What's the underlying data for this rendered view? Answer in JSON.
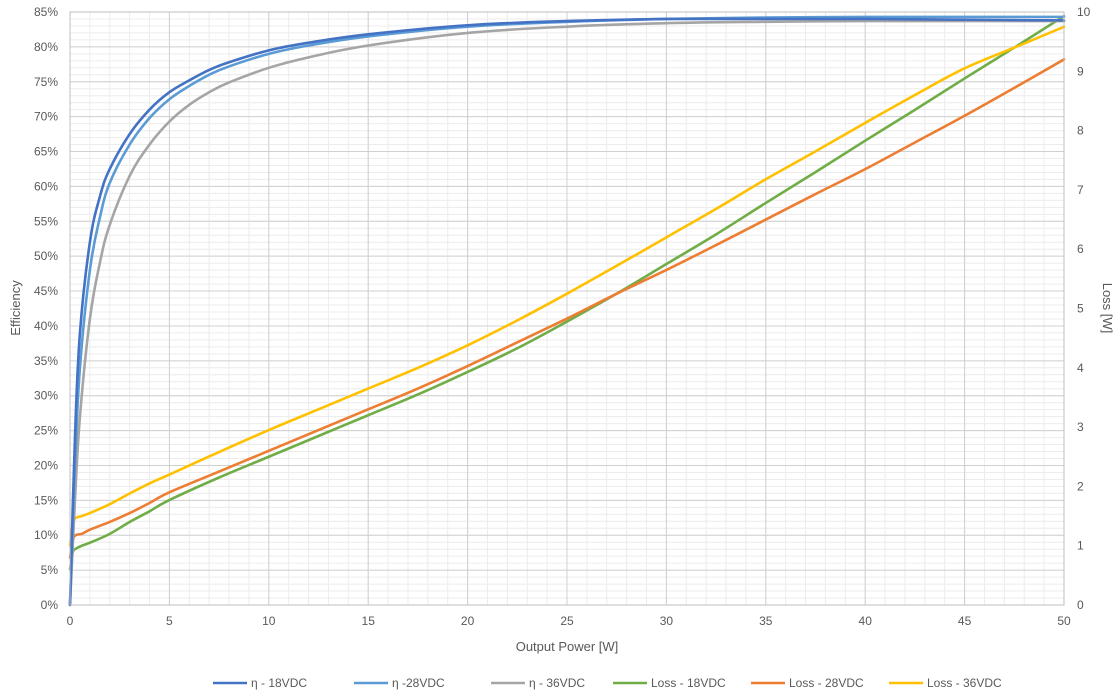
{
  "chart_data": {
    "type": "line",
    "title": "",
    "xlabel": "Output Power [W]",
    "ylabel": "Efficiency",
    "y2label": "Loss [W]",
    "xlim": [
      0,
      50
    ],
    "ylim": [
      0,
      0.85
    ],
    "y2lim": [
      0,
      10
    ],
    "xticks": [
      "0",
      "5",
      "10",
      "15",
      "20",
      "25",
      "30",
      "35",
      "40",
      "45",
      "50"
    ],
    "yticks": [
      "0%",
      "5%",
      "10%",
      "15%",
      "20%",
      "25%",
      "30%",
      "35%",
      "40%",
      "45%",
      "50%",
      "55%",
      "60%",
      "65%",
      "70%",
      "75%",
      "80%",
      "85%"
    ],
    "y2ticks": [
      "0",
      "1",
      "2",
      "3",
      "4",
      "5",
      "6",
      "7",
      "8",
      "9",
      "10"
    ],
    "grid": true,
    "legend_position": "bottom",
    "series": [
      {
        "name": "η - 18VDC",
        "axis": "left",
        "color": "#4472C4",
        "x": [
          0,
          0.25,
          0.5,
          1,
          1.5,
          2,
          3,
          4,
          5,
          6,
          7,
          8,
          10,
          12,
          15,
          20,
          25,
          30,
          35,
          40,
          45,
          50
        ],
        "y": [
          0,
          0.24,
          0.39,
          0.52,
          0.585,
          0.625,
          0.675,
          0.71,
          0.735,
          0.752,
          0.767,
          0.778,
          0.795,
          0.806,
          0.818,
          0.831,
          0.837,
          0.84,
          0.84,
          0.84,
          0.839,
          0.838
        ]
      },
      {
        "name": "η -28VDC",
        "axis": "left",
        "color": "#5B9BD5",
        "x": [
          0,
          0.25,
          0.5,
          1,
          1.5,
          2,
          3,
          4,
          5,
          6,
          7,
          8,
          10,
          12,
          15,
          20,
          25,
          30,
          35,
          40,
          45,
          50
        ],
        "y": [
          0,
          0.2,
          0.34,
          0.48,
          0.555,
          0.605,
          0.66,
          0.698,
          0.725,
          0.744,
          0.76,
          0.772,
          0.79,
          0.802,
          0.815,
          0.829,
          0.836,
          0.84,
          0.842,
          0.843,
          0.843,
          0.843
        ]
      },
      {
        "name": "η - 36VDC",
        "axis": "left",
        "color": "#A5A5A5",
        "x": [
          0,
          0.25,
          0.5,
          1,
          1.5,
          2,
          3,
          4,
          5,
          6,
          7,
          8,
          10,
          12,
          15,
          20,
          25,
          30,
          35,
          40,
          45,
          50
        ],
        "y": [
          0,
          0.15,
          0.27,
          0.41,
          0.49,
          0.545,
          0.615,
          0.66,
          0.693,
          0.717,
          0.735,
          0.749,
          0.77,
          0.785,
          0.802,
          0.82,
          0.829,
          0.834,
          0.836,
          0.837,
          0.837,
          0.837
        ]
      },
      {
        "name": "Loss - 18VDC",
        "axis": "right",
        "color": "#70AD47",
        "x": [
          0,
          0.15,
          0.3,
          0.6,
          1,
          2,
          3,
          4,
          5,
          7.5,
          10,
          12.5,
          15,
          17.5,
          20,
          22.5,
          25,
          27.5,
          30,
          32.5,
          35,
          37.5,
          40,
          42.5,
          45,
          47.5,
          50
        ],
        "y": [
          0.6,
          0.9,
          0.95,
          1.0,
          1.05,
          1.2,
          1.4,
          1.58,
          1.77,
          2.15,
          2.5,
          2.85,
          3.2,
          3.55,
          3.93,
          4.33,
          4.78,
          5.25,
          5.75,
          6.25,
          6.78,
          7.3,
          7.83,
          8.35,
          8.88,
          9.4,
          9.93
        ]
      },
      {
        "name": "Loss - 28VDC",
        "axis": "right",
        "color": "#ED7D31",
        "x": [
          0,
          0.15,
          0.3,
          0.6,
          1,
          2,
          3,
          4,
          5,
          7.5,
          10,
          12.5,
          15,
          17.5,
          20,
          22.5,
          25,
          27.5,
          30,
          32.5,
          35,
          37.5,
          40,
          42.5,
          45,
          47.5,
          50
        ],
        "y": [
          0.8,
          1.1,
          1.18,
          1.2,
          1.27,
          1.4,
          1.55,
          1.72,
          1.9,
          2.25,
          2.6,
          2.95,
          3.3,
          3.65,
          4.03,
          4.43,
          4.83,
          5.25,
          5.65,
          6.07,
          6.5,
          6.93,
          7.35,
          7.8,
          8.25,
          8.72,
          9.2
        ]
      },
      {
        "name": "Loss - 36VDC",
        "axis": "right",
        "color": "#FFC000",
        "x": [
          0,
          0.15,
          0.3,
          0.6,
          1,
          2,
          3,
          4,
          5,
          7.5,
          10,
          12.5,
          15,
          17.5,
          20,
          22.5,
          25,
          27.5,
          30,
          32.5,
          35,
          37.5,
          40,
          42.5,
          45,
          47.5,
          50
        ],
        "y": [
          1.0,
          1.4,
          1.47,
          1.5,
          1.55,
          1.7,
          1.88,
          2.05,
          2.2,
          2.58,
          2.95,
          3.3,
          3.65,
          4.0,
          4.38,
          4.8,
          5.25,
          5.72,
          6.2,
          6.68,
          7.18,
          7.65,
          8.13,
          8.6,
          9.05,
          9.4,
          9.75
        ]
      }
    ]
  }
}
